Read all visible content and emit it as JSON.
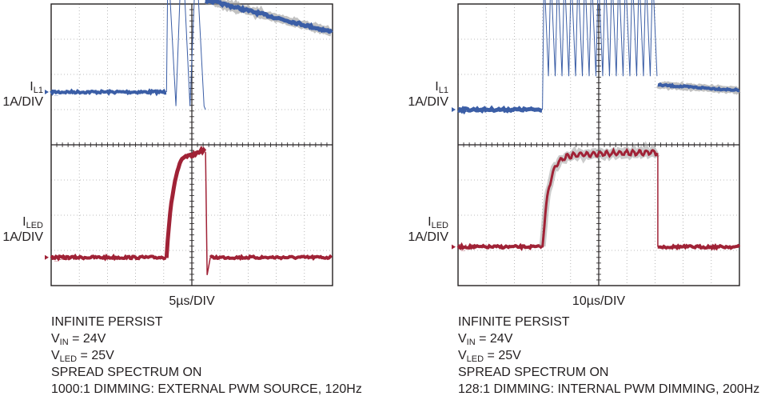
{
  "colors": {
    "il": "#3b5ea6",
    "iled": "#a02236",
    "grid": "#a6a6a6",
    "frame": "#231f20",
    "shadow": "#9a9a9a"
  },
  "chart_data": [
    {
      "type": "line",
      "title": "",
      "xlabel": "5µs/DIV",
      "x_divisions": 10,
      "y_divisions": 8,
      "series": [
        {
          "name": "I_L",
          "ylabel": {
            "main": "I",
            "sub": "L1",
            "scale": "1A/DIV"
          },
          "marker": "I_L",
          "ground_div": 5.5,
          "pulse": {
            "on_div": 4.1,
            "off_div": 5.6,
            "pre_off_div": 5.2
          },
          "spikes": [
            {
              "at_div": 4.15,
              "peak": 3.8
            },
            {
              "at_div": 4.65,
              "peak": 4.3
            },
            {
              "at_div": 5.15,
              "peak": 3.9
            }
          ],
          "after": {
            "start": 2.6,
            "end": 1.7
          }
        },
        {
          "name": "I_LED",
          "ylabel": {
            "main": "I",
            "sub": "LED",
            "scale": "1A/DIV"
          },
          "marker": "I_LED",
          "ground_div": 0.8,
          "pulse": {
            "on_div": 4.1,
            "off_div": 5.6,
            "level": 3.0
          }
        }
      ],
      "notes": [
        {
          "text": "INFINITE PERSIST"
        },
        {
          "main": "V",
          "sub": "IN",
          "rest": " = 24V"
        },
        {
          "main": "V",
          "sub": "LED",
          "rest": " = 25V"
        },
        {
          "text": "SPREAD SPECTRUM ON"
        },
        {
          "text": "1000:1 DIMMING: EXTERNAL PWM SOURCE, 120Hz"
        }
      ]
    },
    {
      "type": "line",
      "title": "",
      "xlabel": "10µs/DIV",
      "x_divisions": 10,
      "y_divisions": 8,
      "series": [
        {
          "name": "I_L",
          "ylabel": {
            "main": "I",
            "sub": "L1",
            "scale": "1A/DIV"
          },
          "marker": "I_L",
          "ground_div": 5.0,
          "pulse": {
            "on_div": 3.0,
            "off_div": 7.1
          },
          "switching": {
            "count": 17,
            "peak": 3.9,
            "valley": 0.25
          },
          "after": {
            "start": 0.7,
            "end": 0.55
          }
        },
        {
          "name": "I_LED",
          "ylabel": {
            "main": "I",
            "sub": "LED",
            "scale": "1A/DIV"
          },
          "marker": "I_LED",
          "ground_div": 1.1,
          "pulse": {
            "on_div": 3.0,
            "off_div": 7.1,
            "level": 2.6
          }
        }
      ],
      "notes": [
        {
          "text": "INFINITE PERSIST"
        },
        {
          "main": "V",
          "sub": "IN",
          "rest": " = 24V"
        },
        {
          "main": "V",
          "sub": "LED",
          "rest": " = 25V"
        },
        {
          "text": "SPREAD SPECTRUM ON"
        },
        {
          "text": "128:1 DIMMING: INTERNAL PWM DIMMING, 200Hz"
        }
      ]
    }
  ]
}
